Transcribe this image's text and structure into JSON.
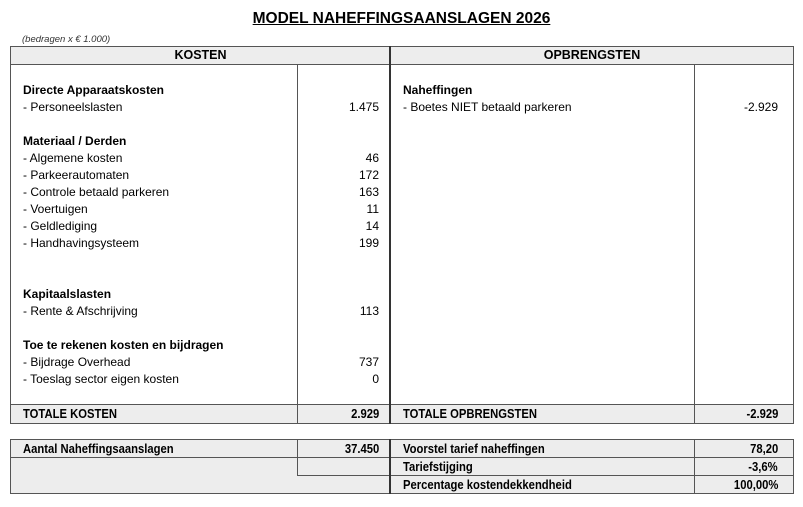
{
  "title": "MODEL NAHEFFINGSAANSLAGEN 2026",
  "note": "(bedragen x € 1.000)",
  "kosten": {
    "header": "KOSTEN",
    "lines": [
      {
        "label": "Directe Apparaatskosten",
        "bold": true,
        "value": ""
      },
      {
        "label": "- Personeelslasten",
        "value": "1.475"
      },
      {
        "label": "Materiaal / Derden",
        "bold": true,
        "value": ""
      },
      {
        "label": "- Algemene kosten",
        "value": "46"
      },
      {
        "label": "- Parkeerautomaten",
        "value": "172"
      },
      {
        "label": "- Controle betaald parkeren",
        "value": "163"
      },
      {
        "label": "- Voertuigen",
        "value": "11"
      },
      {
        "label": "- Geldlediging",
        "value": "14"
      },
      {
        "label": "- Handhavingsysteem",
        "value": "199"
      },
      {
        "label": "Kapitaalslasten",
        "bold": true,
        "value": ""
      },
      {
        "label": "- Rente & Afschrijving",
        "value": "113"
      },
      {
        "label": "Toe te rekenen kosten en bijdragen",
        "bold": true,
        "value": ""
      },
      {
        "label": "- Bijdrage Overhead",
        "value": "737"
      },
      {
        "label": "- Toeslag sector eigen kosten",
        "value": "0"
      }
    ],
    "total_label": "TOTALE KOSTEN",
    "total_value": "2.929"
  },
  "opbrengsten": {
    "header": "OPBRENGSTEN",
    "lines": [
      {
        "label": "Naheffingen",
        "bold": true,
        "value": ""
      },
      {
        "label": "- Boetes NIET betaald parkeren",
        "value": "-2.929"
      }
    ],
    "total_label": "TOTALE OPBRENGSTEN",
    "total_value": "-2.929"
  },
  "summary": {
    "aantal_label": "Aantal Naheffingsaanslagen",
    "aantal_value": "37.450",
    "tarief_label": "Voorstel tarief naheffingen",
    "tarief_value": "78,20",
    "stijging_label": "Tariefstijging",
    "stijging_value": "-3,6%",
    "dekking_label": "Percentage kostendekkendheid",
    "dekking_value": "100,00%"
  }
}
